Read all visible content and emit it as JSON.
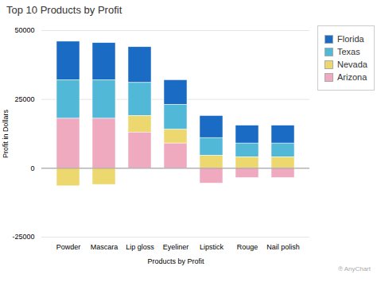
{
  "chart_data": {
    "type": "bar",
    "stacked": true,
    "title": "Top 10 Products by Profit",
    "xlabel": "Products by Profit",
    "ylabel": "Profit in Dollars",
    "categories": [
      "Powder",
      "Mascara",
      "Lip gloss",
      "Eyeliner",
      "Lipstick",
      "Rouge",
      "Nail polish"
    ],
    "series": [
      {
        "name": "Florida",
        "color": "#1A6BC4",
        "values": [
          14000,
          13500,
          13000,
          9000,
          8000,
          6500,
          6500
        ]
      },
      {
        "name": "Texas",
        "color": "#52B8D8",
        "values": [
          14000,
          14000,
          12000,
          9000,
          6500,
          5000,
          5000
        ]
      },
      {
        "name": "Nevada",
        "color": "#EDD870",
        "values": [
          -6500,
          -6000,
          6000,
          5000,
          4500,
          4000,
          4000
        ]
      },
      {
        "name": "Arizona",
        "color": "#F0AABF",
        "values": [
          18000,
          18000,
          13000,
          9000,
          -5500,
          -3500,
          -3500
        ]
      }
    ],
    "ylim": [
      -25000,
      50000
    ],
    "yticks": [
      -25000,
      0,
      25000,
      50000
    ],
    "grid": true,
    "legend": "right",
    "annotations": [
      "℗ AnyChart"
    ]
  }
}
